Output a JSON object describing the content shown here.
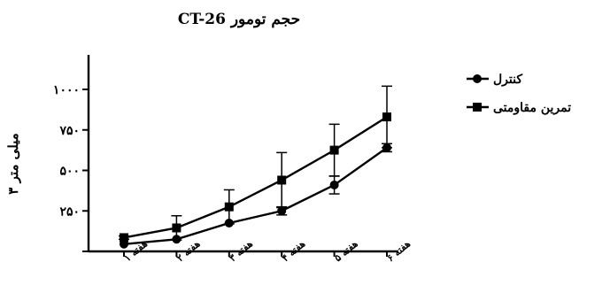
{
  "chart_data": {
    "type": "line",
    "title": "حجم تومور CT-26",
    "xlabel": "",
    "ylabel": "میلی متر ۳",
    "categories": [
      "هفته ۱",
      "هفته ۲",
      "هفته ۳",
      "هفته ۴",
      "هفته ۵",
      "هفته ۶"
    ],
    "ylim": [
      0,
      1000
    ],
    "yticks": [
      0,
      250,
      500,
      750,
      1000
    ],
    "ytick_labels": [
      "",
      "۲۵۰",
      "۵۰۰",
      "۷۵۰",
      "۱۰۰۰"
    ],
    "legend_position": "right",
    "grid": false,
    "series": [
      {
        "name": "کنترل",
        "marker": "circle",
        "color": "#000000",
        "values": [
          45,
          75,
          175,
          250,
          410,
          640
        ],
        "error": [
          0,
          0,
          0,
          25,
          55,
          25
        ]
      },
      {
        "name": "تمرین مقاومتی",
        "marker": "square",
        "color": "#000000",
        "values": [
          85,
          145,
          275,
          440,
          625,
          830
        ],
        "error": [
          10,
          75,
          105,
          170,
          160,
          190
        ]
      }
    ]
  }
}
